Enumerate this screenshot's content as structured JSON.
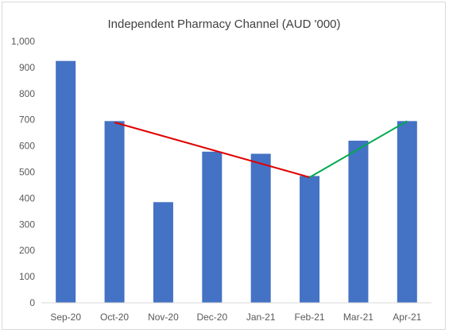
{
  "chart_data": {
    "type": "bar",
    "title": "Independent Pharmacy Channel (AUD '000)",
    "xlabel": "",
    "ylabel": "",
    "categories": [
      "Sep-20",
      "Oct-20",
      "Nov-20",
      "Dec-20",
      "Jan-21",
      "Feb-21",
      "Mar-21",
      "Apr-21"
    ],
    "values": [
      925,
      695,
      385,
      578,
      570,
      485,
      620,
      695
    ],
    "ylim": [
      0,
      1000
    ],
    "yticks": [
      "0",
      "100",
      "200",
      "300",
      "400",
      "500",
      "600",
      "700",
      "800",
      "900",
      "1,000"
    ],
    "grid": false,
    "legend": "none",
    "colors": {
      "bar": "#4472C4",
      "trend_down": "#E00000",
      "trend_up": "#00A94F",
      "axis": "#d9d9d9",
      "text": "#595959"
    },
    "annotations": [
      {
        "type": "trend-line",
        "name": "decline",
        "from": [
          "Oct-20",
          690
        ],
        "to": [
          "Feb-21",
          480
        ],
        "color": "#E00000"
      },
      {
        "type": "trend-line",
        "name": "recovery",
        "from": [
          "Feb-21",
          480
        ],
        "to": [
          "Apr-21",
          695
        ],
        "color": "#00A94F"
      }
    ]
  }
}
